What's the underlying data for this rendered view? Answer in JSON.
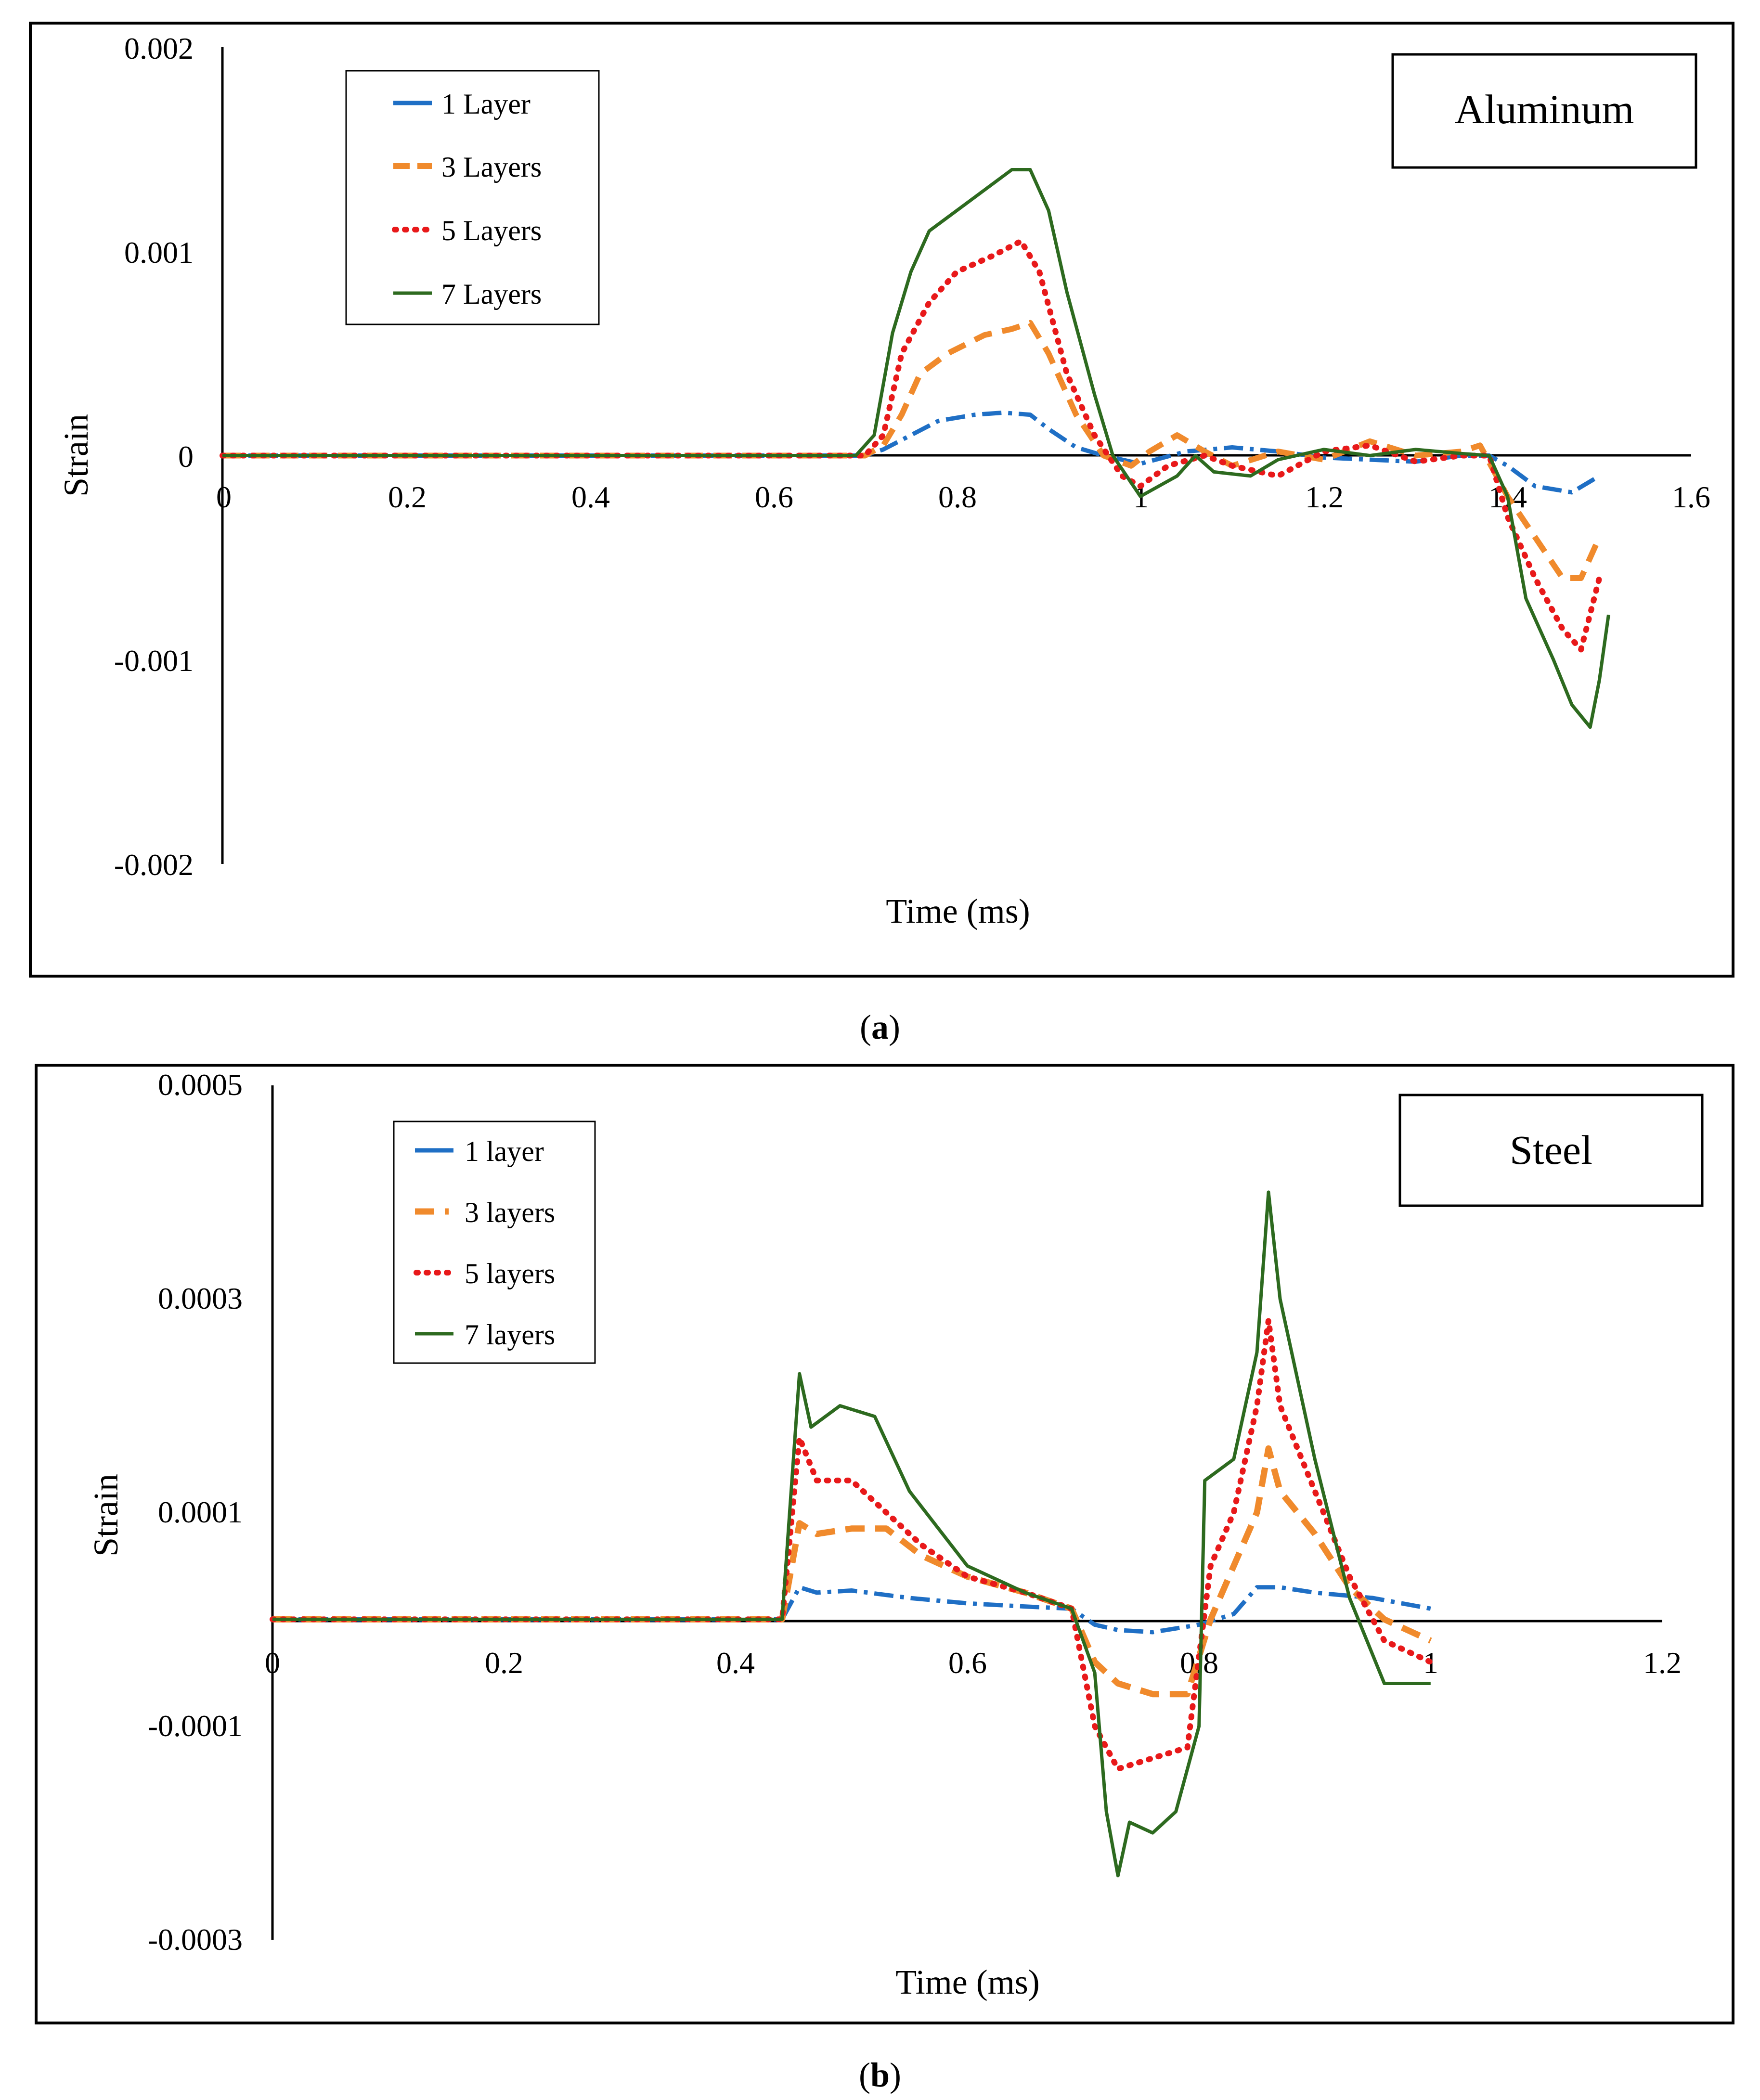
{
  "chart_data": [
    {
      "type": "line",
      "title": "Aluminum",
      "panel_label": "a",
      "xlabel": "Time (ms)",
      "ylabel": "Strain",
      "xlim": [
        0,
        1.6
      ],
      "ylim": [
        -0.002,
        0.002
      ],
      "x_ticks": [
        0,
        0.2,
        0.4,
        0.6,
        0.8,
        1,
        1.2,
        1.4,
        1.6
      ],
      "x_tick_labels": [
        "0",
        "0.2",
        "0.4",
        "0.6",
        "0.8",
        "1",
        "1.2",
        "1.4",
        "1.6"
      ],
      "y_ticks": [
        0.002,
        0.001,
        0,
        -0.001,
        -0.002
      ],
      "y_tick_labels": [
        "0.002",
        "0.001",
        "0",
        "-0.001",
        "-0.002"
      ],
      "legend_position": "top-left",
      "series": [
        {
          "name": "1 Layer",
          "color": "#1f6fc5",
          "style": "dashdot",
          "points": [
            [
              0,
              0
            ],
            [
              0.7,
              0
            ],
            [
              0.72,
              3e-05
            ],
            [
              0.75,
              0.0001
            ],
            [
              0.78,
              0.00017
            ],
            [
              0.82,
              0.0002
            ],
            [
              0.85,
              0.00021
            ],
            [
              0.88,
              0.0002
            ],
            [
              0.9,
              0.00013
            ],
            [
              0.93,
              4e-05
            ],
            [
              0.96,
              0
            ],
            [
              1.0,
              -4e-05
            ],
            [
              1.05,
              2e-05
            ],
            [
              1.1,
              4e-05
            ],
            [
              1.15,
              2e-05
            ],
            [
              1.2,
              -1e-05
            ],
            [
              1.25,
              -2e-05
            ],
            [
              1.3,
              -3e-05
            ],
            [
              1.35,
              0
            ],
            [
              1.38,
              0
            ],
            [
              1.4,
              -5e-05
            ],
            [
              1.43,
              -0.00015
            ],
            [
              1.47,
              -0.00018
            ],
            [
              1.5,
              -0.0001
            ]
          ]
        },
        {
          "name": "3 Layers",
          "color": "#f08a2c",
          "style": "dashed",
          "points": [
            [
              0,
              0
            ],
            [
              0.7,
              0
            ],
            [
              0.72,
              5e-05
            ],
            [
              0.74,
              0.0002
            ],
            [
              0.76,
              0.0004
            ],
            [
              0.79,
              0.0005
            ],
            [
              0.83,
              0.00059
            ],
            [
              0.86,
              0.00062
            ],
            [
              0.88,
              0.00065
            ],
            [
              0.9,
              0.0005
            ],
            [
              0.93,
              0.0002
            ],
            [
              0.96,
              0
            ],
            [
              0.99,
              -5e-05
            ],
            [
              1.01,
              2e-05
            ],
            [
              1.04,
              0.0001
            ],
            [
              1.07,
              2e-05
            ],
            [
              1.1,
              -5e-05
            ],
            [
              1.15,
              2e-05
            ],
            [
              1.2,
              -2e-05
            ],
            [
              1.25,
              7e-05
            ],
            [
              1.3,
              0
            ],
            [
              1.35,
              2e-05
            ],
            [
              1.37,
              5e-05
            ],
            [
              1.4,
              -0.0002
            ],
            [
              1.43,
              -0.0004
            ],
            [
              1.46,
              -0.0006
            ],
            [
              1.48,
              -0.0006
            ],
            [
              1.5,
              -0.0004
            ]
          ]
        },
        {
          "name": "5 Layers",
          "color": "#e8191a",
          "style": "dotted",
          "points": [
            [
              0,
              0
            ],
            [
              0.7,
              0
            ],
            [
              0.72,
              0.0001
            ],
            [
              0.74,
              0.0005
            ],
            [
              0.77,
              0.00075
            ],
            [
              0.8,
              0.0009
            ],
            [
              0.84,
              0.00098
            ],
            [
              0.87,
              0.00105
            ],
            [
              0.89,
              0.0009
            ],
            [
              0.92,
              0.0004
            ],
            [
              0.95,
              0.0001
            ],
            [
              0.98,
              -0.0001
            ],
            [
              1.0,
              -0.00015
            ],
            [
              1.03,
              -5e-05
            ],
            [
              1.07,
              0
            ],
            [
              1.1,
              -5e-05
            ],
            [
              1.15,
              -0.0001
            ],
            [
              1.2,
              2e-05
            ],
            [
              1.25,
              5e-05
            ],
            [
              1.3,
              -3e-05
            ],
            [
              1.35,
              0
            ],
            [
              1.38,
              0
            ],
            [
              1.4,
              -0.0003
            ],
            [
              1.43,
              -0.0006
            ],
            [
              1.46,
              -0.00085
            ],
            [
              1.48,
              -0.00095
            ],
            [
              1.5,
              -0.0006
            ]
          ]
        },
        {
          "name": "7 Layers",
          "color": "#2d6a1f",
          "style": "solid",
          "points": [
            [
              0,
              0
            ],
            [
              0.69,
              0
            ],
            [
              0.71,
              0.0001
            ],
            [
              0.73,
              0.0006
            ],
            [
              0.75,
              0.0009
            ],
            [
              0.77,
              0.0011
            ],
            [
              0.8,
              0.0012
            ],
            [
              0.83,
              0.0013
            ],
            [
              0.86,
              0.0014
            ],
            [
              0.88,
              0.0014
            ],
            [
              0.9,
              0.0012
            ],
            [
              0.92,
              0.0008
            ],
            [
              0.95,
              0.0003
            ],
            [
              0.97,
              0
            ],
            [
              1.0,
              -0.0002
            ],
            [
              1.04,
              -0.0001
            ],
            [
              1.06,
              0
            ],
            [
              1.08,
              -8e-05
            ],
            [
              1.12,
              -0.0001
            ],
            [
              1.15,
              -2e-05
            ],
            [
              1.2,
              3e-05
            ],
            [
              1.25,
              0
            ],
            [
              1.3,
              3e-05
            ],
            [
              1.35,
              1e-05
            ],
            [
              1.38,
              0
            ],
            [
              1.4,
              -0.0002
            ],
            [
              1.42,
              -0.0007
            ],
            [
              1.45,
              -0.001
            ],
            [
              1.47,
              -0.00122
            ],
            [
              1.49,
              -0.00133
            ],
            [
              1.5,
              -0.0011
            ],
            [
              1.51,
              -0.00078
            ]
          ]
        }
      ]
    },
    {
      "type": "line",
      "title": "Steel",
      "panel_label": "b",
      "xlabel": "Time (ms)",
      "ylabel": "Strain",
      "xlim": [
        0,
        1.2
      ],
      "ylim": [
        -0.0003,
        0.0005
      ],
      "x_ticks": [
        0,
        0.2,
        0.4,
        0.6,
        0.8,
        1,
        1.2
      ],
      "x_tick_labels": [
        "0",
        "0.2",
        "0.4",
        "0.6",
        "0.8",
        "1",
        "1.2"
      ],
      "y_ticks": [
        0.0005,
        0.0003,
        0.0001,
        -0.0001,
        -0.0003
      ],
      "y_tick_labels": [
        "0.0005",
        "0.0003",
        "0.0001",
        "-0.0001",
        "-0.0003"
      ],
      "legend_position": "top-left",
      "series": [
        {
          "name": "1 layer",
          "color": "#1f6fc5",
          "style": "dashdot",
          "points": [
            [
              0,
              0
            ],
            [
              0.44,
              0
            ],
            [
              0.455,
              3e-05
            ],
            [
              0.47,
              2.5e-05
            ],
            [
              0.5,
              2.7e-05
            ],
            [
              0.55,
              2e-05
            ],
            [
              0.6,
              1.5e-05
            ],
            [
              0.65,
              1.2e-05
            ],
            [
              0.69,
              1e-05
            ],
            [
              0.71,
              -5e-06
            ],
            [
              0.73,
              -1e-05
            ],
            [
              0.76,
              -1.2e-05
            ],
            [
              0.8,
              -5e-06
            ],
            [
              0.83,
              5e-06
            ],
            [
              0.85,
              3e-05
            ],
            [
              0.87,
              3e-05
            ],
            [
              0.9,
              2.5e-05
            ],
            [
              0.95,
              2e-05
            ],
            [
              1.0,
              1e-05
            ]
          ]
        },
        {
          "name": "3 layers",
          "color": "#f08a2c",
          "style": "dashed",
          "points": [
            [
              0,
              0
            ],
            [
              0.44,
              0
            ],
            [
              0.455,
              9e-05
            ],
            [
              0.47,
              8e-05
            ],
            [
              0.5,
              8.5e-05
            ],
            [
              0.53,
              8.5e-05
            ],
            [
              0.56,
              6e-05
            ],
            [
              0.6,
              4e-05
            ],
            [
              0.65,
              2.5e-05
            ],
            [
              0.69,
              1e-05
            ],
            [
              0.71,
              -4e-05
            ],
            [
              0.73,
              -6e-05
            ],
            [
              0.76,
              -7e-05
            ],
            [
              0.79,
              -7e-05
            ],
            [
              0.81,
              0
            ],
            [
              0.83,
              5e-05
            ],
            [
              0.85,
              0.0001
            ],
            [
              0.86,
              0.00016
            ],
            [
              0.87,
              0.00012
            ],
            [
              0.9,
              8e-05
            ],
            [
              0.93,
              3e-05
            ],
            [
              0.96,
              0
            ],
            [
              1.0,
              -2e-05
            ]
          ]
        },
        {
          "name": "5 layers",
          "color": "#e8191a",
          "style": "dotted",
          "points": [
            [
              0,
              0
            ],
            [
              0.44,
              0
            ],
            [
              0.455,
              0.00017
            ],
            [
              0.47,
              0.00013
            ],
            [
              0.5,
              0.00013
            ],
            [
              0.53,
              0.0001
            ],
            [
              0.56,
              7e-05
            ],
            [
              0.6,
              4e-05
            ],
            [
              0.65,
              2.5e-05
            ],
            [
              0.69,
              1e-05
            ],
            [
              0.71,
              -0.0001
            ],
            [
              0.73,
              -0.00014
            ],
            [
              0.76,
              -0.00013
            ],
            [
              0.79,
              -0.00012
            ],
            [
              0.81,
              5e-05
            ],
            [
              0.83,
              0.0001
            ],
            [
              0.85,
              0.0002
            ],
            [
              0.86,
              0.00028
            ],
            [
              0.87,
              0.0002
            ],
            [
              0.9,
              0.00012
            ],
            [
              0.93,
              4e-05
            ],
            [
              0.96,
              -2e-05
            ],
            [
              1.0,
              -4e-05
            ]
          ]
        },
        {
          "name": "7 layers",
          "color": "#2d6a1f",
          "style": "solid",
          "points": [
            [
              0,
              0
            ],
            [
              0.44,
              0
            ],
            [
              0.455,
              0.00023
            ],
            [
              0.465,
              0.00018
            ],
            [
              0.49,
              0.0002
            ],
            [
              0.52,
              0.00019
            ],
            [
              0.55,
              0.00012
            ],
            [
              0.6,
              5e-05
            ],
            [
              0.65,
              2.5e-05
            ],
            [
              0.69,
              1e-05
            ],
            [
              0.71,
              -5e-05
            ],
            [
              0.72,
              -0.00018
            ],
            [
              0.73,
              -0.00024
            ],
            [
              0.74,
              -0.00019
            ],
            [
              0.76,
              -0.0002
            ],
            [
              0.78,
              -0.00018
            ],
            [
              0.8,
              -0.0001
            ],
            [
              0.805,
              0.00013
            ],
            [
              0.83,
              0.00015
            ],
            [
              0.85,
              0.00025
            ],
            [
              0.86,
              0.0004
            ],
            [
              0.87,
              0.0003
            ],
            [
              0.9,
              0.00015
            ],
            [
              0.93,
              2e-05
            ],
            [
              0.96,
              -6e-05
            ],
            [
              1.0,
              -6e-05
            ]
          ]
        }
      ]
    }
  ]
}
